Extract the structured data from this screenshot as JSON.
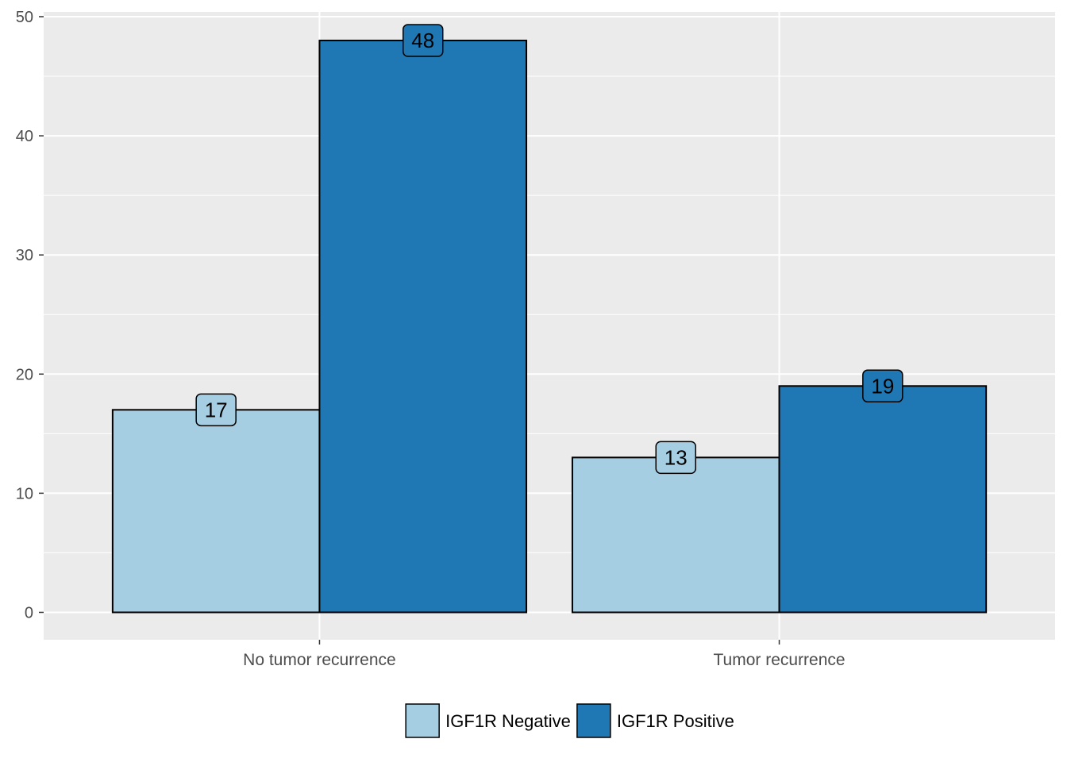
{
  "chart_data": {
    "type": "bar",
    "categories": [
      "No tumor recurrence",
      "Tumor recurrence"
    ],
    "series": [
      {
        "name": "IGF1R Negative",
        "values": [
          17,
          13
        ],
        "color": "#a6cee3"
      },
      {
        "name": "IGF1R Positive",
        "values": [
          48,
          19
        ],
        "color": "#1f78b4"
      }
    ],
    "y_ticks": [
      0,
      10,
      20,
      30,
      40,
      50
    ],
    "ylim": [
      -2.3,
      50.4
    ],
    "xlabel": "",
    "ylabel": "",
    "grid": true,
    "legend_position": "bottom",
    "panel_color": "#ebebeb",
    "bar_outline_color": "#000000"
  }
}
